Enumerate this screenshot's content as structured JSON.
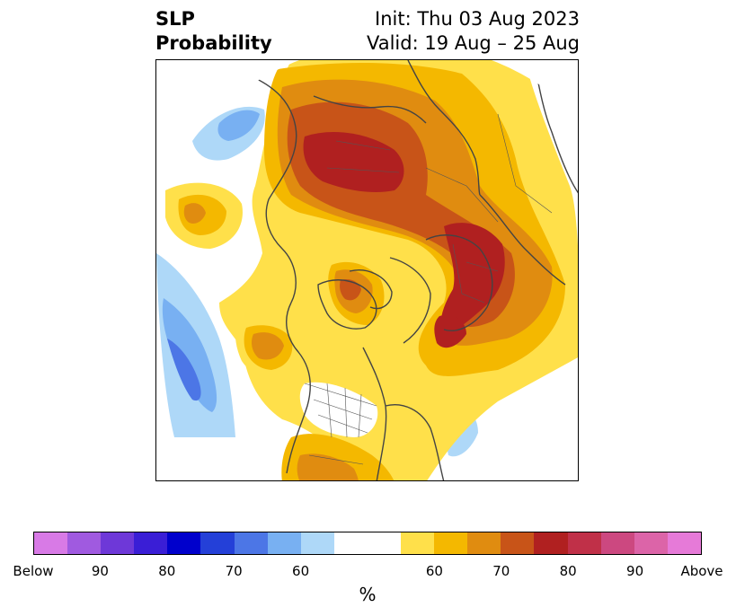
{
  "title": {
    "left_line1": "SLP",
    "left_line2": "Probability",
    "right_line1": "Init: Thu 03 Aug 2023",
    "right_line2": "Valid: 19 Aug – 25 Aug"
  },
  "colorbar": {
    "unit": "%",
    "colors": [
      "#d87ae6",
      "#a05ae0",
      "#6e38d8",
      "#3a1ed6",
      "#0000cc",
      "#2440d8",
      "#4c76e6",
      "#78b0f2",
      "#aed8f8",
      "#ffffff",
      "#ffffff",
      "#ffe04a",
      "#f4b800",
      "#e08c10",
      "#c85418",
      "#b02020",
      "#c03048",
      "#cc4880",
      "#dc64a8",
      "#e67ad8"
    ],
    "tick_labels": [
      "Below",
      "90",
      "80",
      "70",
      "60",
      "60",
      "70",
      "80",
      "90",
      "Above"
    ]
  },
  "map": {
    "projection": "north-polar-stereographic",
    "category_colors": {
      "above_50": "#ffe04a",
      "above_60": "#f4b800",
      "above_70": "#e08c10",
      "above_80": "#c85418",
      "above_90": "#b02020",
      "below_50": "#aed8f8",
      "below_60": "#78b0f2",
      "below_70": "#4c76e6",
      "below_80": "#2440d8",
      "neutral": "#ffffff",
      "coastline": "#444444"
    }
  }
}
